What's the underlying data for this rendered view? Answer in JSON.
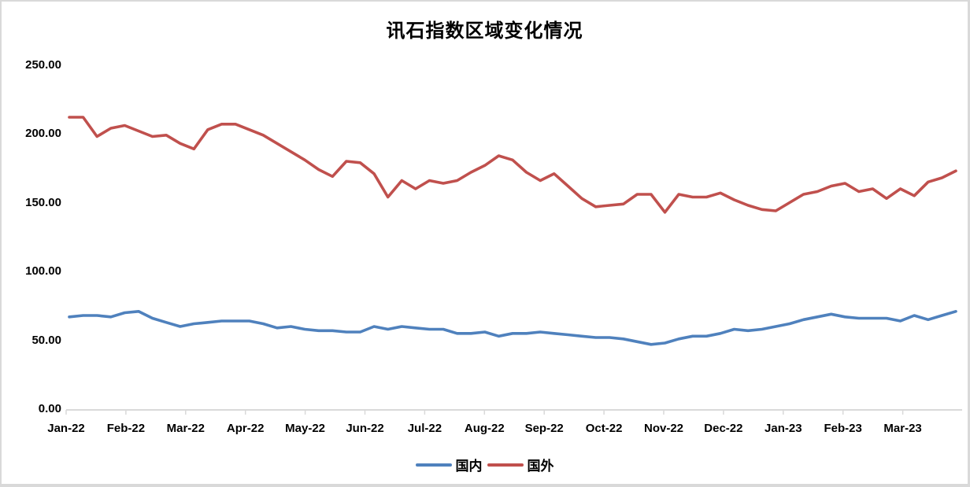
{
  "chart_data": {
    "type": "line",
    "title": "讯石指数区域变化情况",
    "xlabel": "",
    "ylabel": "",
    "x_unit": "week",
    "x_tick_labels": [
      "Jan-22",
      "Feb-22",
      "Mar-22",
      "Apr-22",
      "May-22",
      "Jun-22",
      "Jul-22",
      "Aug-22",
      "Sep-22",
      "Oct-22",
      "Nov-22",
      "Dec-22",
      "Jan-23",
      "Feb-23",
      "Mar-23"
    ],
    "y_ticks": [
      0,
      50,
      100,
      150,
      200,
      250
    ],
    "y_tick_labels": [
      "0.00",
      "50.00",
      "100.00",
      "150.00",
      "200.00",
      "250.00"
    ],
    "ylim": [
      0,
      250
    ],
    "grid": false,
    "legend_position": "bottom",
    "axis_color": "#d9d9d9",
    "series": [
      {
        "name": "国内",
        "color": "#4f81bd",
        "values": [
          67,
          68,
          68,
          67,
          70,
          71,
          66,
          63,
          60,
          62,
          63,
          64,
          64,
          64,
          62,
          59,
          60,
          58,
          57,
          57,
          56,
          56,
          60,
          58,
          60,
          59,
          58,
          58,
          55,
          55,
          56,
          53,
          55,
          55,
          56,
          55,
          54,
          53,
          52,
          52,
          51,
          49,
          47,
          48,
          51,
          53,
          53,
          55,
          58,
          57,
          58,
          60,
          62,
          65,
          67,
          69,
          67,
          66,
          66,
          66,
          64,
          68,
          65,
          68,
          71
        ]
      },
      {
        "name": "国外",
        "color": "#c0504d",
        "values": [
          212,
          212,
          198,
          204,
          206,
          202,
          198,
          199,
          193,
          189,
          203,
          207,
          207,
          203,
          199,
          193,
          187,
          181,
          174,
          169,
          180,
          179,
          171,
          154,
          166,
          160,
          166,
          164,
          166,
          172,
          177,
          184,
          181,
          172,
          166,
          171,
          162,
          153,
          147,
          148,
          149,
          156,
          156,
          143,
          156,
          154,
          154,
          157,
          152,
          148,
          145,
          144,
          150,
          156,
          158,
          162,
          164,
          158,
          160,
          153,
          160,
          155,
          165,
          168,
          173
        ]
      }
    ]
  }
}
